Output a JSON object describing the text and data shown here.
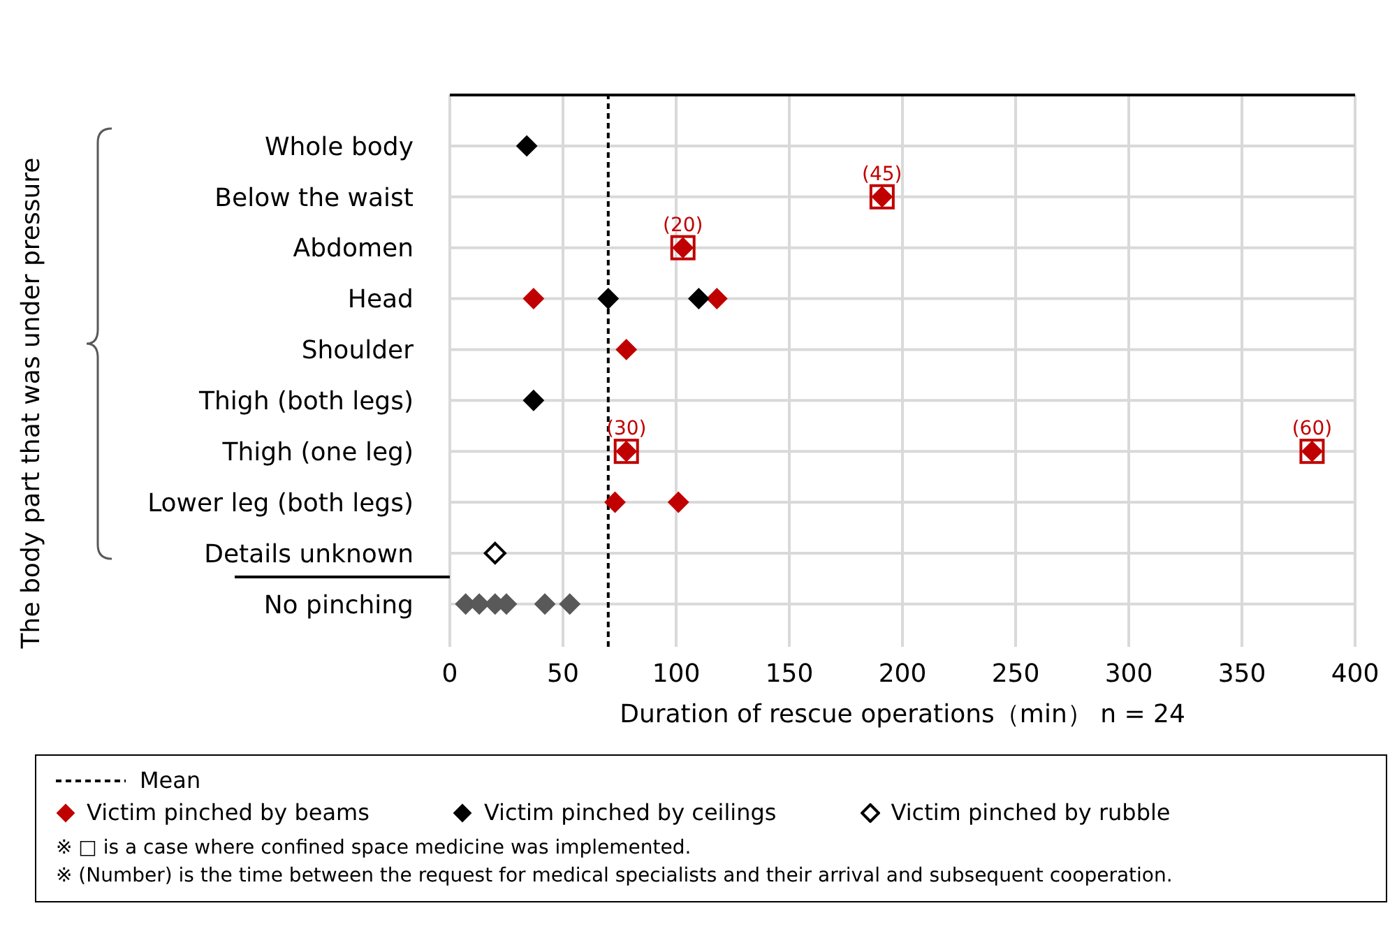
{
  "chart_data": {
    "type": "scatter",
    "orientation": "horizontal",
    "xlabel": "Duration of rescue operations（min）  n = 24",
    "ylabel": "The body part that was under pressure",
    "categories": [
      "Whole body",
      "Below the waist",
      "Abdomen",
      "Head",
      "Shoulder",
      "Thigh (both legs)",
      "Thigh (one leg)",
      "Lower leg (both legs)",
      "Details unknown",
      "No pinching"
    ],
    "series": [
      {
        "name": "Victim pinched by beams",
        "color": "#c00000",
        "marker": "diamond",
        "values": [
          191,
          103,
          37,
          118,
          78,
          78,
          381,
          73,
          101
        ],
        "x": [
          "Below the waist",
          "Abdomen",
          "Head",
          "Head",
          "Shoulder",
          "Thigh (one leg)",
          "Thigh (one leg)",
          "Lower leg (both legs)",
          "Lower leg (both legs)"
        ]
      },
      {
        "name": "Victim pinched by ceilings",
        "color": "#000000",
        "marker": "diamond",
        "values": [
          34,
          70,
          110,
          37
        ],
        "x": [
          "Whole body",
          "Head",
          "Head",
          "Thigh (both legs)"
        ]
      },
      {
        "name": "Victim pinched by rubble",
        "color": "#ffffff",
        "marker": "diamond",
        "values": [
          20
        ],
        "x": [
          "Details unknown"
        ]
      },
      {
        "color": "#595959",
        "marker": "diamond",
        "values": [
          7,
          13,
          20,
          25,
          42,
          53
        ],
        "x": [
          "No pinching",
          "No pinching",
          "No pinching",
          "No pinching",
          "No pinching",
          "No pinching"
        ]
      },
      {
        "color": "#c00000",
        "marker": "square",
        "values": [
          191,
          103,
          78,
          381
        ],
        "x": [
          "Below the waist",
          "Abdomen",
          "Thigh (one leg)",
          "Thigh (one leg)"
        ]
      }
    ],
    "xlim": [
      0,
      400
    ],
    "xticks": [
      0,
      50,
      100,
      150,
      200,
      250,
      300,
      350,
      400
    ],
    "grid": true,
    "legend": "bottom",
    "ref_lines": [
      {
        "axis": "x",
        "value": 70,
        "label": "Mean",
        "color": "#000000",
        "line_style": "dashed"
      }
    ],
    "annotations": [
      {
        "text": "(45)",
        "x": 191,
        "y": "Below the waist"
      },
      {
        "text": "(20)",
        "x": 103,
        "y": "Abdomen"
      },
      {
        "text": "(30)",
        "x": 78,
        "y": "Thigh (one leg)"
      },
      {
        "text": "(60)",
        "x": 381,
        "y": "Thigh (one leg)"
      },
      "※ □ is a case where confined space medicine was implemented.",
      "※ (Number) is the time between the request for medical specialists and their arrival and subsequent cooperation."
    ]
  }
}
